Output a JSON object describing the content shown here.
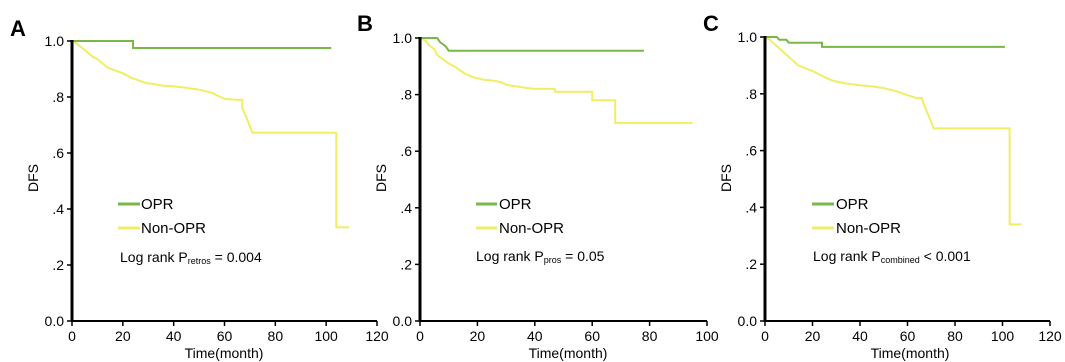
{
  "chart_data": [
    {
      "panel": "A",
      "type": "line",
      "xlabel": "Time(month)",
      "ylabel": "DFS",
      "xlim": [
        0,
        120
      ],
      "ylim": [
        0,
        1
      ],
      "x_ticks": [
        "0",
        "20",
        "40",
        "60",
        "80",
        "100",
        "120"
      ],
      "y_ticks": [
        "0.0",
        ".2",
        ".4",
        ".6",
        ".8",
        "1.0"
      ],
      "series": [
        {
          "name": "OPR",
          "color": "#7ab648",
          "points": [
            [
              0,
              1.0
            ],
            [
              10,
              1.0
            ],
            [
              24,
              1.0
            ],
            [
              24,
              0.975
            ],
            [
              102,
              0.975
            ]
          ]
        },
        {
          "name": "Non-OPR",
          "color": "#f0ee64",
          "points": [
            [
              0,
              1.0
            ],
            [
              2,
              0.99
            ],
            [
              4,
              0.975
            ],
            [
              6,
              0.96
            ],
            [
              8,
              0.945
            ],
            [
              10,
              0.935
            ],
            [
              12,
              0.92
            ],
            [
              14,
              0.905
            ],
            [
              17,
              0.895
            ],
            [
              20,
              0.885
            ],
            [
              23,
              0.87
            ],
            [
              26,
              0.86
            ],
            [
              29,
              0.85
            ],
            [
              33,
              0.845
            ],
            [
              36,
              0.84
            ],
            [
              40,
              0.838
            ],
            [
              45,
              0.833
            ],
            [
              50,
              0.826
            ],
            [
              55,
              0.815
            ],
            [
              60,
              0.793
            ],
            [
              65,
              0.79
            ],
            [
              67,
              0.79
            ],
            [
              67,
              0.76
            ],
            [
              68,
              0.74
            ],
            [
              69,
              0.718
            ],
            [
              70,
              0.695
            ],
            [
              71,
              0.672
            ],
            [
              90,
              0.672
            ],
            [
              104,
              0.672
            ],
            [
              104,
              0.335
            ],
            [
              109,
              0.335
            ]
          ]
        }
      ],
      "legend": {
        "placement": "lower-left",
        "entries": [
          "OPR",
          "Non-OPR"
        ]
      },
      "annotation": {
        "prefix": "Log rank P",
        "subscript": "retros",
        "suffix": " = 0.004"
      }
    },
    {
      "panel": "B",
      "type": "line",
      "xlabel": "Time(month)",
      "ylabel": "DFS",
      "xlim": [
        0,
        100
      ],
      "ylim": [
        0,
        1
      ],
      "x_ticks": [
        "0",
        "20",
        "40",
        "60",
        "80",
        "100"
      ],
      "y_ticks": [
        "0.0",
        ".2",
        ".4",
        ".6",
        ".8",
        "1.0"
      ],
      "series": [
        {
          "name": "OPR",
          "color": "#7ab648",
          "points": [
            [
              0,
              1.0
            ],
            [
              6,
              1.0
            ],
            [
              7,
              0.985
            ],
            [
              9,
              0.97
            ],
            [
              10,
              0.955
            ],
            [
              78,
              0.955
            ]
          ]
        },
        {
          "name": "Non-OPR",
          "color": "#f0ee64",
          "points": [
            [
              0,
              1.0
            ],
            [
              2,
              0.99
            ],
            [
              3,
              0.975
            ],
            [
              5,
              0.96
            ],
            [
              6,
              0.94
            ],
            [
              8,
              0.925
            ],
            [
              10,
              0.91
            ],
            [
              12,
              0.9
            ],
            [
              14,
              0.885
            ],
            [
              16,
              0.872
            ],
            [
              19,
              0.86
            ],
            [
              22,
              0.853
            ],
            [
              25,
              0.85
            ],
            [
              28,
              0.845
            ],
            [
              30,
              0.835
            ],
            [
              33,
              0.83
            ],
            [
              36,
              0.825
            ],
            [
              40,
              0.82
            ],
            [
              47,
              0.82
            ],
            [
              47,
              0.81
            ],
            [
              60,
              0.81
            ],
            [
              60,
              0.78
            ],
            [
              68,
              0.78
            ],
            [
              68,
              0.7
            ],
            [
              95,
              0.7
            ]
          ]
        }
      ],
      "legend": {
        "placement": "lower-left",
        "entries": [
          "OPR",
          "Non-OPR"
        ]
      },
      "annotation": {
        "prefix": "Log rank P",
        "subscript": "pros",
        "suffix": " = 0.05"
      }
    },
    {
      "panel": "C",
      "type": "line",
      "xlabel": "Time(month)",
      "ylabel": "DFS",
      "xlim": [
        0,
        120
      ],
      "ylim": [
        0,
        1
      ],
      "x_ticks": [
        "0",
        "20",
        "40",
        "60",
        "80",
        "100",
        "120"
      ],
      "y_ticks": [
        "0.0",
        ".2",
        ".4",
        ".6",
        ".8",
        "1.0"
      ],
      "series": [
        {
          "name": "OPR",
          "color": "#7ab648",
          "points": [
            [
              0,
              1.0
            ],
            [
              5,
              1.0
            ],
            [
              6,
              0.99
            ],
            [
              9,
              0.99
            ],
            [
              10,
              0.98
            ],
            [
              24,
              0.98
            ],
            [
              24,
              0.965
            ],
            [
              101,
              0.965
            ]
          ]
        },
        {
          "name": "Non-OPR",
          "color": "#f0ee64",
          "points": [
            [
              0,
              1.0
            ],
            [
              2,
              0.99
            ],
            [
              4,
              0.975
            ],
            [
              6,
              0.96
            ],
            [
              8,
              0.945
            ],
            [
              10,
              0.93
            ],
            [
              12,
              0.915
            ],
            [
              14,
              0.9
            ],
            [
              17,
              0.89
            ],
            [
              20,
              0.88
            ],
            [
              23,
              0.868
            ],
            [
              26,
              0.855
            ],
            [
              29,
              0.845
            ],
            [
              33,
              0.838
            ],
            [
              36,
              0.834
            ],
            [
              40,
              0.83
            ],
            [
              45,
              0.826
            ],
            [
              50,
              0.82
            ],
            [
              55,
              0.81
            ],
            [
              60,
              0.795
            ],
            [
              64,
              0.785
            ],
            [
              66,
              0.785
            ],
            [
              67,
              0.76
            ],
            [
              68,
              0.74
            ],
            [
              69,
              0.72
            ],
            [
              70,
              0.7
            ],
            [
              71,
              0.678
            ],
            [
              90,
              0.678
            ],
            [
              103,
              0.678
            ],
            [
              103,
              0.34
            ],
            [
              108,
              0.34
            ]
          ]
        }
      ],
      "legend": {
        "placement": "lower-left",
        "entries": [
          "OPR",
          "Non-OPR"
        ]
      },
      "annotation": {
        "prefix": "Log rank P",
        "subscript": "combined",
        "suffix": " < 0.001"
      }
    }
  ]
}
